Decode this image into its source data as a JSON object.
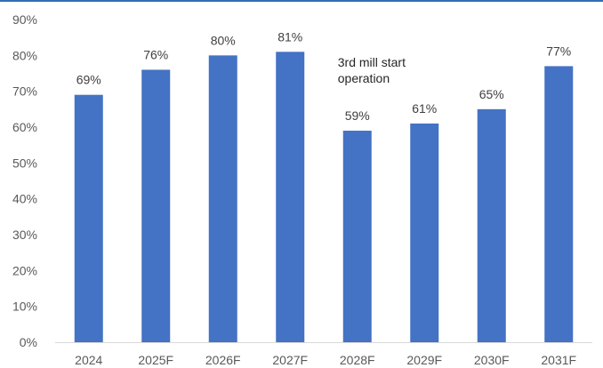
{
  "chart_data": {
    "type": "bar",
    "categories": [
      "2024",
      "2025F",
      "2026F",
      "2027F",
      "2028F",
      "2029F",
      "2030F",
      "2031F"
    ],
    "values": [
      69,
      76,
      80,
      81,
      59,
      61,
      65,
      77
    ],
    "data_labels": [
      "69%",
      "76%",
      "80%",
      "81%",
      "59%",
      "61%",
      "65%",
      "77%"
    ],
    "y_ticks": [
      0,
      10,
      20,
      30,
      40,
      50,
      60,
      70,
      80,
      90
    ],
    "y_tick_labels": [
      "0%",
      "10%",
      "20%",
      "30%",
      "40%",
      "50%",
      "60%",
      "70%",
      "80%",
      "90%"
    ],
    "ylim": [
      0,
      90
    ],
    "grid": false,
    "legend": "none",
    "title": "",
    "xlabel": "",
    "ylabel": "",
    "annotation": {
      "lines": [
        "3rd mill start",
        "operation"
      ],
      "near_category": "2028F"
    },
    "colors": {
      "bar": "#4472c4",
      "axis": "#d9d9d9",
      "top_rule": "#2f6fb3"
    }
  }
}
